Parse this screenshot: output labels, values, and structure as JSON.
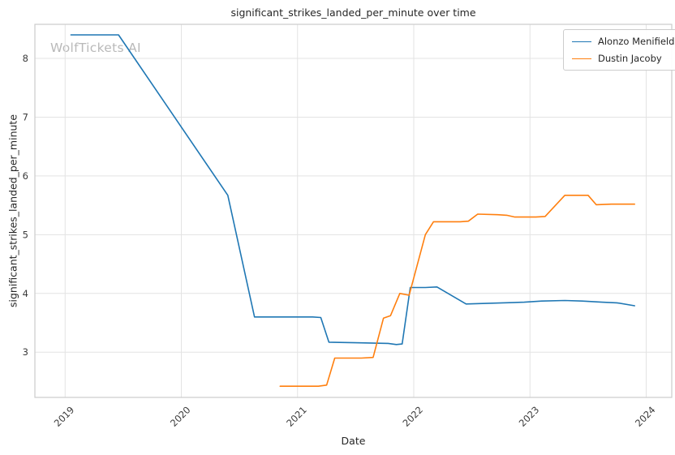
{
  "watermark": "WolfTickets AI",
  "chart_data": {
    "type": "line",
    "title": "significant_strikes_landed_per_minute over time",
    "xlabel": "Date",
    "ylabel": "significant_strikes_landed_per_minute",
    "xlim": [
      2018.74,
      2024.22
    ],
    "ylim": [
      2.23,
      8.58
    ],
    "xticks": [
      2019,
      2020,
      2021,
      2022,
      2023,
      2024
    ],
    "yticks": [
      3,
      4,
      5,
      6,
      7,
      8
    ],
    "grid": true,
    "grid_color": "#e3e3e3",
    "frame_color": "#cccccc",
    "legend_position": "upper right",
    "series": [
      {
        "name": "Alonzo Menifield",
        "color": "#1f77b4",
        "points": [
          [
            2019.05,
            8.4
          ],
          [
            2019.46,
            8.4
          ],
          [
            2020.4,
            5.67
          ],
          [
            2020.63,
            3.6
          ],
          [
            2021.13,
            3.6
          ],
          [
            2021.2,
            3.59
          ],
          [
            2021.27,
            3.17
          ],
          [
            2021.5,
            3.16
          ],
          [
            2021.78,
            3.15
          ],
          [
            2021.85,
            3.13
          ],
          [
            2021.9,
            3.14
          ],
          [
            2021.97,
            4.1
          ],
          [
            2022.1,
            4.1
          ],
          [
            2022.2,
            4.11
          ],
          [
            2022.45,
            3.82
          ],
          [
            2022.62,
            3.83
          ],
          [
            2022.95,
            3.85
          ],
          [
            2023.1,
            3.87
          ],
          [
            2023.3,
            3.88
          ],
          [
            2023.45,
            3.87
          ],
          [
            2023.62,
            3.85
          ],
          [
            2023.75,
            3.84
          ],
          [
            2023.9,
            3.79
          ]
        ]
      },
      {
        "name": "Dustin Jacoby",
        "color": "#ff7f0e",
        "points": [
          [
            2020.85,
            2.42
          ],
          [
            2021.18,
            2.42
          ],
          [
            2021.25,
            2.44
          ],
          [
            2021.32,
            2.9
          ],
          [
            2021.55,
            2.9
          ],
          [
            2021.65,
            2.91
          ],
          [
            2021.74,
            3.58
          ],
          [
            2021.8,
            3.62
          ],
          [
            2021.88,
            4.0
          ],
          [
            2021.96,
            3.97
          ],
          [
            2022.1,
            5.0
          ],
          [
            2022.17,
            5.22
          ],
          [
            2022.4,
            5.22
          ],
          [
            2022.47,
            5.23
          ],
          [
            2022.55,
            5.35
          ],
          [
            2022.72,
            5.34
          ],
          [
            2022.8,
            5.33
          ],
          [
            2022.87,
            5.3
          ],
          [
            2023.05,
            5.3
          ],
          [
            2023.13,
            5.31
          ],
          [
            2023.3,
            5.67
          ],
          [
            2023.5,
            5.67
          ],
          [
            2023.57,
            5.51
          ],
          [
            2023.7,
            5.52
          ],
          [
            2023.9,
            5.52
          ]
        ]
      }
    ]
  }
}
